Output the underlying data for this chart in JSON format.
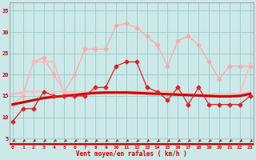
{
  "x": [
    0,
    1,
    2,
    3,
    4,
    5,
    6,
    7,
    8,
    9,
    10,
    11,
    12,
    13,
    14,
    15,
    16,
    17,
    18,
    19,
    20,
    21,
    22,
    23
  ],
  "line_gust_y": [
    13,
    15,
    23,
    24,
    20,
    16,
    20,
    26,
    26,
    26,
    31.5,
    32,
    31,
    29,
    27,
    22,
    28,
    29,
    27,
    23,
    19,
    22,
    22,
    22
  ],
  "line_mean_y": [
    9,
    12,
    12,
    16,
    15,
    15,
    15,
    15,
    17,
    17,
    22,
    23,
    23,
    17,
    16,
    14,
    17,
    13,
    17,
    13,
    13,
    13,
    13,
    15
  ],
  "line_flat1_y": [
    15.5,
    15.5,
    23,
    23,
    23,
    15.5,
    15.5,
    15.5,
    15.5,
    15.5,
    15.5,
    15.5,
    15.5,
    15.5,
    15.5,
    15.5,
    15.5,
    15.5,
    15.5,
    15.5,
    15.5,
    15.5,
    15.5,
    22.5
  ],
  "line_flat2_y": [
    15.5,
    16,
    16,
    16,
    16,
    16,
    16,
    16,
    16,
    16,
    16,
    16,
    16,
    16,
    16,
    16,
    16,
    15.5,
    15.5,
    15,
    15,
    15,
    15.5,
    16
  ],
  "line_trend_y": [
    13,
    13.5,
    14,
    14.5,
    14.8,
    15,
    15.2,
    15.5,
    15.7,
    15.8,
    15.8,
    15.8,
    15.7,
    15.6,
    15.5,
    15.4,
    15.3,
    15.2,
    15.1,
    15.0,
    14.9,
    14.9,
    15.0,
    15.5
  ],
  "line_gust_color": "#ffaaaa",
  "line_mean_color": "#dd2222",
  "line_flat1_color": "#ffbbbb",
  "line_flat2_color": "#ffbbbb",
  "line_trend_color": "#cc0000",
  "bg_color": "#cce8e8",
  "grid_color": "#99cccc",
  "xlabel": "Vent moyen/en rafales ( km/h )",
  "yticks": [
    5,
    10,
    15,
    20,
    25,
    30,
    35
  ],
  "xlim": [
    -0.3,
    23.3
  ],
  "ylim": [
    3.5,
    37
  ]
}
